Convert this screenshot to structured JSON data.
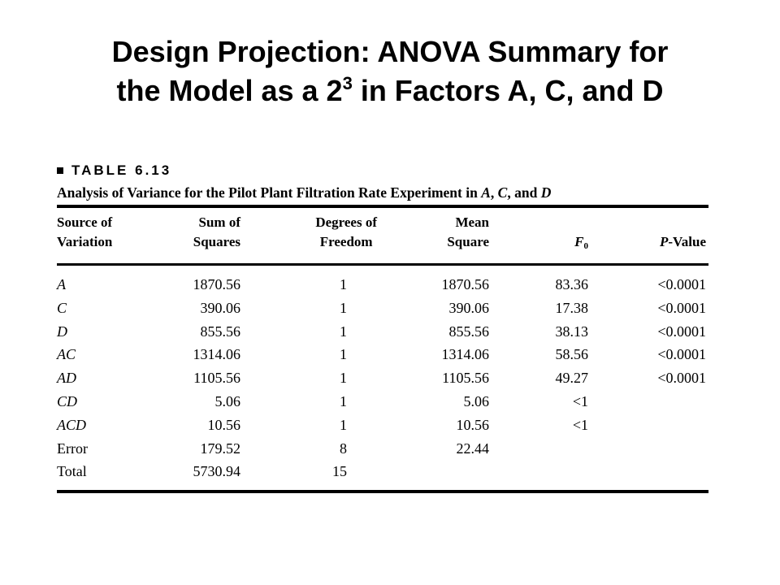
{
  "slide": {
    "title_line1": "Design Projection: ANOVA Summary for",
    "title_line2_before": "the Model as a 2",
    "title_sup": "3",
    "title_line2_after": " in Factors A, C, and D"
  },
  "table": {
    "label": "TABLE 6.13",
    "caption_before": "Analysis of Variance for the Pilot Plant Filtration Rate Experiment in ",
    "caption_a": "A",
    "caption_sep1": ", ",
    "caption_c": "C",
    "caption_sep2": ", and ",
    "caption_d": "D",
    "headers": {
      "source": [
        "Source of",
        "Variation"
      ],
      "ss": [
        "Sum of",
        "Squares"
      ],
      "df": [
        "Degrees of",
        "Freedom"
      ],
      "ms": [
        "Mean",
        "Square"
      ],
      "f": "F",
      "f_sub": "0",
      "p_italic": "P",
      "p_rest": "-Value"
    },
    "rows": [
      {
        "source": "A",
        "ss": "1870.56",
        "df": "1",
        "ms": "1870.56",
        "f": "83.36",
        "p": "<0.0001"
      },
      {
        "source": "C",
        "ss": "390.06",
        "df": "1",
        "ms": "390.06",
        "f": "17.38",
        "p": "<0.0001"
      },
      {
        "source": "D",
        "ss": "855.56",
        "df": "1",
        "ms": "855.56",
        "f": "38.13",
        "p": "<0.0001"
      },
      {
        "source": "AC",
        "ss": "1314.06",
        "df": "1",
        "ms": "1314.06",
        "f": "58.56",
        "p": "<0.0001"
      },
      {
        "source": "AD",
        "ss": "1105.56",
        "df": "1",
        "ms": "1105.56",
        "f": "49.27",
        "p": "<0.0001"
      },
      {
        "source": "CD",
        "ss": "5.06",
        "df": "1",
        "ms": "5.06",
        "f": "<1",
        "p": ""
      },
      {
        "source": "ACD",
        "ss": "10.56",
        "df": "1",
        "ms": "10.56",
        "f": "<1",
        "p": ""
      },
      {
        "source": "Error",
        "ss": "179.52",
        "df": "8",
        "ms": "22.44",
        "f": "",
        "p": ""
      },
      {
        "source": "Total",
        "ss": "5730.94",
        "df": "15",
        "ms": "",
        "f": "",
        "p": ""
      }
    ]
  }
}
